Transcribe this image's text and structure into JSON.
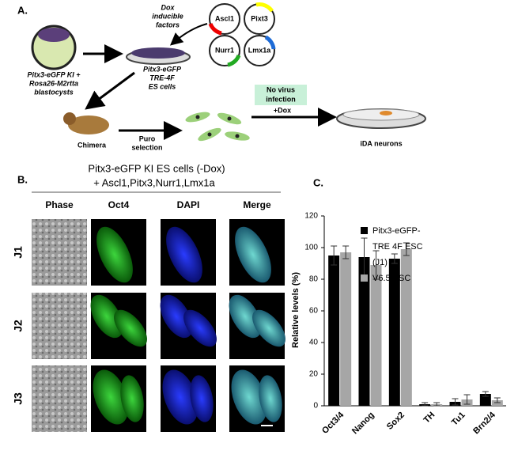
{
  "panel_a": {
    "label": "A.",
    "factors_title": [
      "Dox",
      "inducible",
      "factors"
    ],
    "factors": [
      "Ascl1",
      "Pixt3",
      "Nurr1",
      "Lmx1a"
    ],
    "blastocyst": [
      "Pitx3-eGFP KI +",
      "Rosa26-M2rtta",
      "blastocysts"
    ],
    "es_cells": [
      "Pitx3-eGFP",
      "TRE-4F",
      "ES cells"
    ],
    "chimera": "Chimera",
    "selection": [
      "Puro",
      "selection"
    ],
    "condition": [
      "No virus",
      "infection",
      "+Dox"
    ],
    "result": "iDA neurons"
  },
  "panel_b": {
    "label": "B.",
    "title": "Pitx3-eGFP KI ES cells (-Dox)",
    "subtitle": "+ Ascl1,Pitx3,Nurr1,Lmx1a",
    "columns": [
      "Phase",
      "Oct4",
      "DAPI",
      "Merge"
    ],
    "rows": [
      "J1",
      "J2",
      "J3"
    ]
  },
  "chart_data": {
    "type": "bar",
    "panel_label": "C.",
    "y_label": "Relative levels (%)",
    "categories": [
      "Oct3/4",
      "Nanog",
      "Sox2",
      "TH",
      "Tu1",
      "Brn2/4"
    ],
    "series": [
      {
        "name": "Pitx3-eGFP-TRE 4F ESC (J1)",
        "color": "#000000",
        "values": [
          95,
          94,
          93,
          1,
          2.5,
          7.5
        ],
        "errors": [
          6,
          12,
          3,
          1,
          2,
          1.5
        ]
      },
      {
        "name": "V6.5 ESC",
        "color": "#a6a6a6",
        "values": [
          97,
          89,
          99,
          1,
          4,
          3.5
        ],
        "errors": [
          4,
          9,
          4,
          1,
          3,
          1.5
        ]
      }
    ],
    "ylim": [
      0,
      120
    ],
    "yticks": [
      0,
      20,
      40,
      60,
      80,
      100,
      120
    ]
  }
}
